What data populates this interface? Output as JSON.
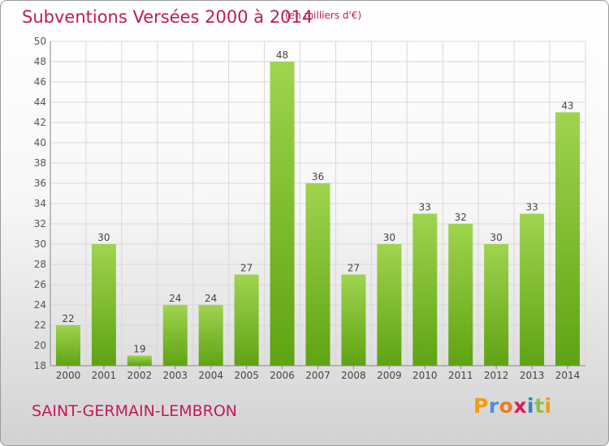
{
  "header": {
    "title": "Subventions Versées 2000 à 2014",
    "unit": "(en milliers d'€)"
  },
  "footer": {
    "commune": "SAINT-GERMAIN-LEMBRON",
    "logo_letters": [
      "P",
      "r",
      "o",
      "x",
      "i",
      "t",
      "i"
    ],
    "logo_colors": [
      "#f39c12",
      "#4a90d9",
      "#e67e22",
      "#d81b60",
      "#2e86c1",
      "#8bc34a",
      "#f39c12"
    ]
  },
  "colors": {
    "title": "#c2185b",
    "bar_top": "#9fd44f",
    "bar_bottom": "#5fa312",
    "grid": "#d8d8d8"
  },
  "chart_data": {
    "type": "bar",
    "title": "Subventions Versées 2000 à 2014",
    "subtitle": "(en milliers d'€)",
    "xlabel": "",
    "ylabel": "",
    "categories": [
      "2000",
      "2001",
      "2002",
      "2003",
      "2004",
      "2005",
      "2006",
      "2007",
      "2008",
      "2009",
      "2010",
      "2011",
      "2012",
      "2013",
      "2014"
    ],
    "values": [
      22,
      30,
      19,
      24,
      24,
      27,
      48,
      36,
      27,
      30,
      33,
      32,
      30,
      33,
      43
    ],
    "ylim": [
      18,
      50
    ],
    "yticks": [
      18,
      20,
      22,
      24,
      26,
      28,
      30,
      32,
      34,
      36,
      38,
      40,
      42,
      44,
      46,
      48,
      50
    ],
    "grid": true,
    "data_labels": true
  }
}
